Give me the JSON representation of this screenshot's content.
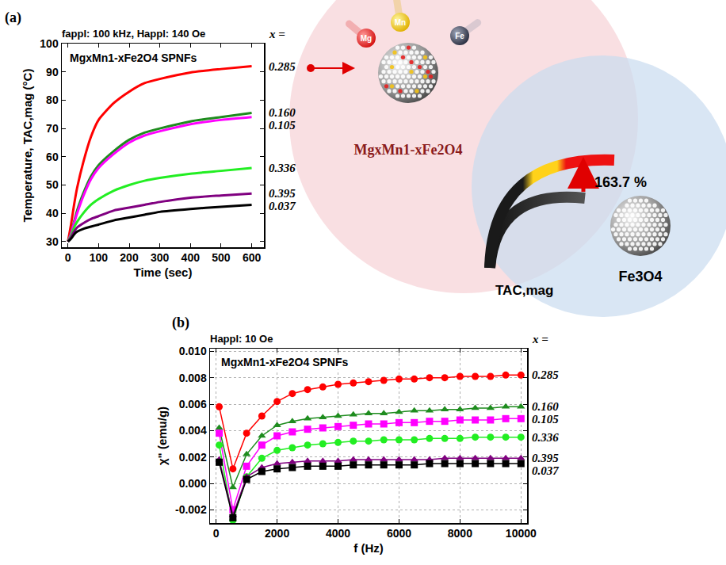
{
  "chart_data": [
    {
      "type": "line",
      "label": "(a)",
      "subtitle": "fappl: 100 kHz, Happl: 140 Oe",
      "annotations": [
        "MgxMn1-xFe2O4 SPNFs"
      ],
      "legend_title": "x =",
      "x_label": "Time (sec)",
      "y_label": "Temperature, TAC,mag (°C)",
      "x": [
        0,
        10,
        20,
        30,
        50,
        75,
        100,
        150,
        200,
        250,
        300,
        400,
        500,
        600
      ],
      "series": [
        {
          "name": "0.285",
          "color": "#ff0000",
          "values": [
            30,
            36,
            43,
            49,
            58,
            67,
            73,
            79,
            83,
            86,
            87.5,
            89.8,
            91,
            92
          ]
        },
        {
          "name": "0.160",
          "color": "#1e8c1e",
          "values": [
            30,
            33,
            37,
            41,
            47,
            53,
            57,
            62,
            66,
            68.5,
            70,
            72.5,
            74,
            75.5
          ]
        },
        {
          "name": "0.105",
          "color": "#ff00ff",
          "values": [
            30,
            32.8,
            36.5,
            40,
            46,
            52,
            56,
            61,
            65,
            67.5,
            69,
            71.5,
            73,
            74
          ]
        },
        {
          "name": "0.336",
          "color": "#22ee22",
          "values": [
            30,
            32,
            35,
            37,
            40,
            43,
            45,
            48,
            50,
            51.5,
            52.5,
            54,
            55,
            56
          ]
        },
        {
          "name": "0.395",
          "color": "#800080",
          "values": [
            30,
            31.5,
            33.5,
            35,
            36.5,
            38,
            39,
            41,
            42,
            43,
            44,
            45.5,
            46.3,
            47
          ]
        },
        {
          "name": "0.037",
          "color": "#000000",
          "values": [
            30,
            31,
            32.5,
            33.5,
            34.5,
            35.3,
            36,
            37.5,
            38.5,
            39.5,
            40.5,
            41.5,
            42.3,
            43
          ]
        }
      ],
      "xlim": [
        -20,
        640
      ],
      "xticks": [
        0,
        100,
        200,
        300,
        400,
        500,
        600
      ],
      "ylim": [
        28,
        100
      ],
      "yticks": [
        30,
        40,
        50,
        60,
        70,
        80,
        90,
        100
      ],
      "grid": false
    },
    {
      "type": "line",
      "label": "(b)",
      "subtitle": "Happl: 10 Oe",
      "annotations": [
        "MgxMn1-xFe2O4 SPNFs"
      ],
      "legend_title": "x =",
      "x_label": "f (Hz)",
      "y_label": "χ\" (emu/g)",
      "x": [
        100,
        550,
        1000,
        1500,
        2000,
        2500,
        3000,
        3500,
        4000,
        4500,
        5000,
        5500,
        6000,
        6500,
        7000,
        7500,
        8000,
        8500,
        9000,
        9500,
        10000
      ],
      "series": [
        {
          "name": "0.285",
          "color": "#ff0000",
          "marker": "circle",
          "values": [
            0.0058,
            0.0011,
            0.0038,
            0.0051,
            0.0062,
            0.0068,
            0.0071,
            0.0073,
            0.0075,
            0.0076,
            0.0077,
            0.0078,
            0.0079,
            0.0079,
            0.008,
            0.008,
            0.0081,
            0.0081,
            0.0081,
            0.0082,
            0.0082
          ]
        },
        {
          "name": "0.160",
          "color": "#1e8c1e",
          "marker": "triangle",
          "values": [
            0.0042,
            -0.0003,
            0.0022,
            0.0036,
            0.0044,
            0.0047,
            0.0049,
            0.005,
            0.0051,
            0.0052,
            0.0053,
            0.0053,
            0.0054,
            0.0055,
            0.0055,
            0.0056,
            0.0056,
            0.0057,
            0.0057,
            0.0058,
            0.0058
          ]
        },
        {
          "name": "0.105",
          "color": "#ff00ff",
          "marker": "square",
          "values": [
            0.0038,
            -0.002,
            0.0013,
            0.0029,
            0.0036,
            0.0039,
            0.0041,
            0.0042,
            0.0043,
            0.0044,
            0.0045,
            0.0045,
            0.0046,
            0.0046,
            0.0047,
            0.0047,
            0.0048,
            0.0048,
            0.0048,
            0.0049,
            0.0049
          ]
        },
        {
          "name": "0.336",
          "color": "#22ee22",
          "marker": "circle",
          "values": [
            0.0029,
            -0.0028,
            0.0005,
            0.0019,
            0.0025,
            0.0027,
            0.0029,
            0.003,
            0.0031,
            0.0032,
            0.0032,
            0.0033,
            0.0033,
            0.0033,
            0.0034,
            0.0034,
            0.0034,
            0.0035,
            0.0035,
            0.0035,
            0.0035
          ]
        },
        {
          "name": "0.395",
          "color": "#800080",
          "marker": "triangle",
          "values": [
            0.0018,
            -0.0024,
            0.0005,
            0.0012,
            0.0015,
            0.0016,
            0.0017,
            0.0017,
            0.0017,
            0.0018,
            0.0018,
            0.0018,
            0.0018,
            0.0018,
            0.0018,
            0.0019,
            0.0019,
            0.0019,
            0.0019,
            0.0019,
            0.0019
          ]
        },
        {
          "name": "0.037",
          "color": "#000000",
          "marker": "square",
          "values": [
            0.0016,
            -0.0026,
            0.0003,
            0.0009,
            0.0011,
            0.0012,
            0.0013,
            0.0013,
            0.0013,
            0.0014,
            0.0014,
            0.0014,
            0.0014,
            0.0014,
            0.0015,
            0.0015,
            0.0015,
            0.0015,
            0.0015,
            0.0015,
            0.0015
          ]
        }
      ],
      "xlim": [
        -200,
        10200
      ],
      "xticks": [
        0,
        2000,
        4000,
        6000,
        8000,
        10000
      ],
      "ylim": [
        -0.003,
        0.0102
      ],
      "yticks": [
        -0.002,
        {
          "value": 0,
          "label": "0.000"
        },
        0.002,
        0.004,
        0.006,
        0.008,
        {
          "value": 0.01,
          "label": "0.010"
        }
      ],
      "grid": true
    }
  ],
  "diagram": {
    "elements": [
      "Mg",
      "Mn",
      "Fe"
    ],
    "material": "MgxMn1-xFe2O4",
    "reference": "Fe3O4",
    "quantity": "TAC,mag",
    "enhancement": "163.7 %"
  }
}
